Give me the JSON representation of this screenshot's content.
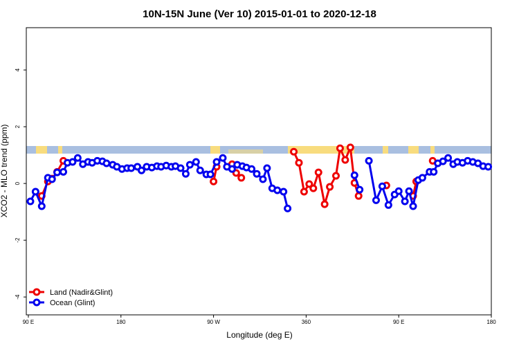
{
  "chart_data": {
    "type": "line",
    "title": "10N-15N June (Ver 10)   2015-01-01 to 2020-12-18",
    "x_label": "Longitude (deg E)",
    "y_label": "XCO2 - MLO trend (ppm)",
    "xlim": [
      88,
      540
    ],
    "ylim": [
      -4.63,
      5.49
    ],
    "xticks": [
      {
        "value": 90,
        "label": "90 E"
      },
      180,
      {
        "value": 270,
        "label": "90 W"
      },
      360,
      {
        "value": 450,
        "label": "90 E"
      },
      {
        "value": 540,
        "label": "180"
      }
    ],
    "yticks": [
      -4,
      -2,
      0,
      2,
      4
    ],
    "legend": "bottom-left",
    "series": [
      {
        "name": "Land (Nadir&Glint)",
        "color": "#ee0000",
        "x": [
          103,
          109,
          113,
          118,
          124,
          200,
          270,
          273,
          280,
          288,
          292,
          297,
          320,
          348,
          353,
          358,
          363,
          367,
          372,
          378,
          383,
          389,
          393,
          398,
          403,
          407,
          411,
          425,
          438,
          450,
          464,
          467,
          475,
          483
        ],
        "values": [
          -0.44,
          0.07,
          0.17,
          0.41,
          0.8,
          null,
          0.07,
          0.59,
          null,
          0.68,
          0.37,
          0.2,
          null,
          1.12,
          0.73,
          -0.29,
          -0.02,
          -0.17,
          0.39,
          -0.73,
          -0.12,
          0.27,
          1.24,
          0.83,
          1.27,
          0.02,
          -0.44,
          null,
          -0.07,
          null,
          -0.44,
          0.07,
          null,
          0.8
        ]
      },
      {
        "name": "Ocean (Glint)",
        "color": "#0000ee",
        "x": [
          92,
          97,
          103,
          109,
          113,
          118,
          124,
          128,
          133,
          138,
          143,
          148,
          152,
          157,
          162,
          166,
          172,
          176,
          181,
          186,
          190,
          196,
          200,
          205,
          210,
          215,
          219,
          224,
          229,
          233,
          238,
          243,
          247,
          253,
          257,
          263,
          267,
          273,
          279,
          283,
          288,
          293,
          298,
          302,
          307,
          312,
          318,
          322,
          327,
          332,
          338,
          342,
          375,
          407,
          412,
          416,
          421,
          428,
          434,
          440,
          446,
          450,
          456,
          460,
          464,
          469,
          473,
          480,
          484,
          488,
          493,
          498,
          503,
          507,
          512,
          517,
          522,
          527,
          532,
          537
        ],
        "values": [
          -0.63,
          -0.29,
          -0.8,
          0.2,
          0.15,
          0.39,
          0.41,
          0.73,
          0.76,
          0.9,
          0.68,
          0.76,
          0.73,
          0.8,
          0.78,
          0.71,
          0.66,
          0.59,
          0.51,
          0.54,
          0.54,
          0.59,
          0.46,
          0.59,
          0.56,
          0.61,
          0.59,
          0.63,
          0.59,
          0.61,
          0.54,
          0.34,
          0.66,
          0.76,
          0.46,
          0.32,
          0.32,
          0.76,
          0.9,
          0.59,
          0.51,
          0.66,
          0.61,
          0.56,
          0.51,
          0.34,
          0.15,
          0.54,
          -0.17,
          -0.24,
          -0.29,
          -0.88,
          null,
          0.29,
          -0.22,
          null,
          0.8,
          -0.59,
          -0.1,
          -0.76,
          -0.39,
          -0.27,
          -0.63,
          -0.27,
          -0.8,
          0.12,
          0.2,
          0.41,
          0.41,
          0.71,
          0.78,
          0.9,
          0.68,
          0.76,
          0.73,
          0.8,
          0.76,
          0.71,
          0.61,
          0.59
        ]
      }
    ]
  }
}
